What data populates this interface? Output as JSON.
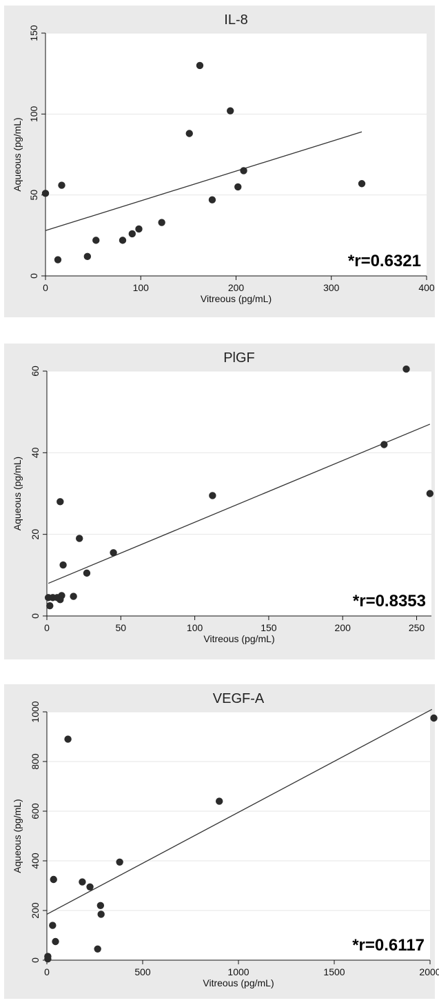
{
  "chart_data": [
    {
      "type": "scatter",
      "title": "IL-8",
      "xlabel": "Vitreous (pg/mL)",
      "ylabel": "Aqueous (pg/mL)",
      "annotation": "*r=0.6321",
      "xlim": [
        0,
        400
      ],
      "ylim": [
        0,
        150
      ],
      "xticks": [
        0,
        100,
        200,
        300,
        400
      ],
      "yticks": [
        0,
        50,
        100,
        150
      ],
      "grid": true,
      "x": [
        0,
        13,
        17,
        44,
        53,
        81,
        91,
        98,
        122,
        151,
        162,
        175,
        194,
        202,
        208,
        332
      ],
      "y": [
        51,
        10,
        56,
        12,
        22,
        22,
        26,
        29,
        33,
        88,
        130,
        47,
        102,
        55,
        65,
        57
      ],
      "fit_line": {
        "x": [
          0,
          332
        ],
        "y": [
          28,
          89
        ]
      },
      "colors": {
        "point": "#2b2b2b",
        "line": "#333333",
        "background": "#eaeaea"
      }
    },
    {
      "type": "scatter",
      "title": "PlGF",
      "xlabel": "Vitreous (pg/mL)",
      "ylabel": "Aqueous (pg/mL)",
      "annotation": "*r=0.8353",
      "xlim": [
        0,
        260
      ],
      "ylim": [
        0,
        60
      ],
      "xticks": [
        0,
        50,
        100,
        150,
        200,
        250
      ],
      "yticks": [
        0,
        20,
        40,
        60
      ],
      "grid": true,
      "x": [
        1,
        2,
        4,
        7,
        9,
        9,
        10,
        11,
        18,
        22,
        27,
        45,
        112,
        228,
        243,
        259
      ],
      "y": [
        4.5,
        2.5,
        4.5,
        4.5,
        28,
        4,
        5,
        12.5,
        4.8,
        19,
        10.5,
        15.5,
        29.5,
        42,
        60.5,
        30
      ],
      "fit_line": {
        "x": [
          1,
          259
        ],
        "y": [
          8,
          47
        ]
      },
      "colors": {
        "point": "#2b2b2b",
        "line": "#333333",
        "background": "#eaeaea"
      }
    },
    {
      "type": "scatter",
      "title": "VEGF-A",
      "xlabel": "Vitreous (pg/mL)",
      "ylabel": "Aqueous (pg/mL)",
      "annotation": "*r=0.6117",
      "xlim": [
        0,
        2000
      ],
      "ylim": [
        0,
        1000
      ],
      "xticks": [
        0,
        500,
        1000,
        1500,
        2000
      ],
      "yticks": [
        0,
        200,
        400,
        600,
        800,
        1000
      ],
      "grid": true,
      "x": [
        5,
        5,
        30,
        35,
        45,
        110,
        185,
        225,
        265,
        280,
        283,
        380,
        900,
        2020
      ],
      "y": [
        5,
        15,
        140,
        325,
        75,
        890,
        315,
        295,
        45,
        220,
        185,
        395,
        640,
        975
      ],
      "fit_line": {
        "x": [
          0,
          2010
        ],
        "y": [
          185,
          1010
        ]
      },
      "colors": {
        "point": "#2b2b2b",
        "line": "#333333",
        "background": "#eaeaea"
      }
    }
  ]
}
